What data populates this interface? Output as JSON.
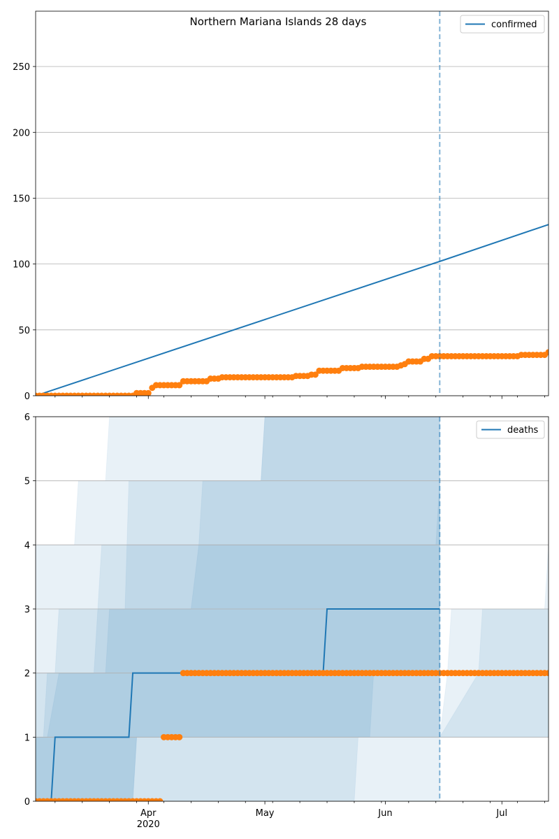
{
  "title": "Northern Mariana Islands 28 days",
  "colors": {
    "model_line": "#1f77b4",
    "observed_points": "#ff7f0e",
    "band": "#1f77b4",
    "vline": "#1f77b4",
    "grid": "#b0b0b0"
  },
  "chart_data": [
    {
      "type": "line",
      "panel": "confirmed",
      "title": "Northern Mariana Islands 28 days",
      "legend": [
        "confirmed"
      ],
      "legend_position": "top-right",
      "grid": "horizontal",
      "x_range": [
        "2020-03-03",
        "2020-07-13"
      ],
      "ylim": [
        0,
        292
      ],
      "y_ticks": [
        0,
        50,
        100,
        150,
        200,
        250
      ],
      "x_tick_labels": [
        "Apr\n2020",
        "May",
        "Jun",
        "Jul"
      ],
      "forecast_start": "2020-06-15",
      "series": [
        {
          "name": "confirmed",
          "style": "line",
          "points": [
            [
              "2020-03-03",
              0
            ],
            [
              "2020-06-15",
              102
            ],
            [
              "2020-06-16",
              103
            ],
            [
              "2020-07-13",
              130
            ]
          ]
        },
        {
          "style": "points",
          "segments": [
            [
              "2020-03-03",
              "2020-03-28",
              0
            ],
            [
              "2020-03-29",
              "2020-04-01",
              2
            ],
            [
              "2020-04-02",
              "2020-04-02",
              6
            ],
            [
              "2020-04-03",
              "2020-04-09",
              8
            ],
            [
              "2020-04-10",
              "2020-04-16",
              11
            ],
            [
              "2020-04-17",
              "2020-04-19",
              13
            ],
            [
              "2020-04-20",
              "2020-05-08",
              14
            ],
            [
              "2020-05-09",
              "2020-05-12",
              15
            ],
            [
              "2020-05-13",
              "2020-05-14",
              16
            ],
            [
              "2020-05-15",
              "2020-05-20",
              19
            ],
            [
              "2020-05-21",
              "2020-05-25",
              21
            ],
            [
              "2020-05-26",
              "2020-06-04",
              22
            ],
            [
              "2020-06-05",
              "2020-06-05",
              23
            ],
            [
              "2020-06-06",
              "2020-06-06",
              24
            ],
            [
              "2020-06-07",
              "2020-06-10",
              26
            ],
            [
              "2020-06-11",
              "2020-06-12",
              28
            ],
            [
              "2020-06-13",
              "2020-07-05",
              30
            ],
            [
              "2020-07-06",
              "2020-07-12",
              31
            ],
            [
              "2020-07-13",
              "2020-07-13",
              33
            ]
          ]
        }
      ]
    },
    {
      "type": "line",
      "panel": "deaths",
      "legend": [
        "deaths"
      ],
      "legend_position": "top-right",
      "grid": "horizontal",
      "x_range": [
        "2020-03-03",
        "2020-07-13"
      ],
      "ylim": [
        0,
        6
      ],
      "y_ticks": [
        0,
        1,
        2,
        3,
        4,
        5,
        6
      ],
      "x_tick_labels": [
        "Apr\n2020",
        "May",
        "Jun",
        "Jul"
      ],
      "forecast_start": "2020-06-15",
      "bands": [
        {
          "upper": [
            [
              "2020-03-03",
              4
            ],
            [
              "2020-03-13",
              4
            ],
            [
              "2020-03-14",
              5
            ],
            [
              "2020-03-21",
              5
            ],
            [
              "2020-03-22",
              6
            ],
            [
              "2020-06-15",
              6
            ]
          ],
          "lower": [
            [
              "2020-03-03",
              0
            ],
            [
              "2020-03-28",
              0
            ],
            [
              "2020-03-29",
              1
            ],
            [
              "2020-05-28",
              1
            ],
            [
              "2020-05-29",
              2
            ],
            [
              "2020-06-15",
              2
            ]
          ]
        },
        {
          "upper": [
            [
              "2020-03-03",
              2
            ],
            [
              "2020-03-08",
              2
            ],
            [
              "2020-03-09",
              3
            ],
            [
              "2020-03-26",
              3
            ],
            [
              "2020-03-27",
              5
            ],
            [
              "2020-04-30",
              5
            ],
            [
              "2020-05-01",
              6
            ],
            [
              "2020-06-15",
              6
            ]
          ],
          "lower": [
            [
              "2020-03-03",
              0
            ],
            [
              "2020-05-24",
              0
            ],
            [
              "2020-05-25",
              1
            ],
            [
              "2020-06-15",
              1
            ]
          ]
        },
        {
          "upper": [
            [
              "2020-03-03",
              1
            ],
            [
              "2020-03-06",
              1
            ],
            [
              "2020-03-09",
              2
            ],
            [
              "2020-03-18",
              2
            ],
            [
              "2020-03-20",
              4
            ],
            [
              "2020-04-14",
              4
            ],
            [
              "2020-04-15",
              5
            ],
            [
              "2020-04-30",
              5
            ],
            [
              "2020-05-01",
              6
            ],
            [
              "2020-06-15",
              6
            ]
          ],
          "lower": [
            [
              "2020-03-03",
              0
            ],
            [
              "2020-03-28",
              0
            ],
            [
              "2020-03-29",
              1
            ],
            [
              "2020-06-15",
              1
            ]
          ]
        },
        {
          "upper": [
            [
              "2020-03-03",
              1
            ],
            [
              "2020-03-05",
              1
            ],
            [
              "2020-03-06",
              2
            ],
            [
              "2020-03-21",
              2
            ],
            [
              "2020-03-22",
              3
            ],
            [
              "2020-04-12",
              3
            ],
            [
              "2020-04-14",
              4
            ],
            [
              "2020-06-14",
              4
            ],
            [
              "2020-06-15",
              5
            ]
          ],
          "lower": [
            [
              "2020-03-03",
              0
            ],
            [
              "2020-06-15",
              0
            ]
          ]
        },
        {
          "upper": [
            [
              "2020-06-17",
              2
            ],
            [
              "2020-06-18",
              3
            ],
            [
              "2020-07-12",
              3
            ],
            [
              "2020-07-13",
              4
            ]
          ],
          "lower": [
            [
              "2020-06-15",
              1
            ],
            [
              "2020-07-13",
              1
            ]
          ]
        },
        {
          "upper": [
            [
              "2020-06-25",
              2
            ],
            [
              "2020-06-26",
              3
            ],
            [
              "2020-07-13",
              3
            ]
          ],
          "lower": [
            [
              "2020-06-15",
              1
            ],
            [
              "2020-07-13",
              1
            ]
          ]
        }
      ],
      "series": [
        {
          "name": "deaths",
          "style": "line",
          "points": [
            [
              "2020-03-03",
              0
            ],
            [
              "2020-03-07",
              0
            ],
            [
              "2020-03-08",
              1
            ],
            [
              "2020-03-27",
              1
            ],
            [
              "2020-03-28",
              2
            ],
            [
              "2020-05-16",
              2
            ],
            [
              "2020-05-17",
              3
            ],
            [
              "2020-06-15",
              3
            ]
          ]
        },
        {
          "style": "points",
          "segments": [
            [
              "2020-03-03",
              "2020-04-04",
              0
            ],
            [
              "2020-04-05",
              "2020-04-09",
              1
            ],
            [
              "2020-04-10",
              "2020-07-13",
              2
            ]
          ]
        }
      ]
    }
  ]
}
